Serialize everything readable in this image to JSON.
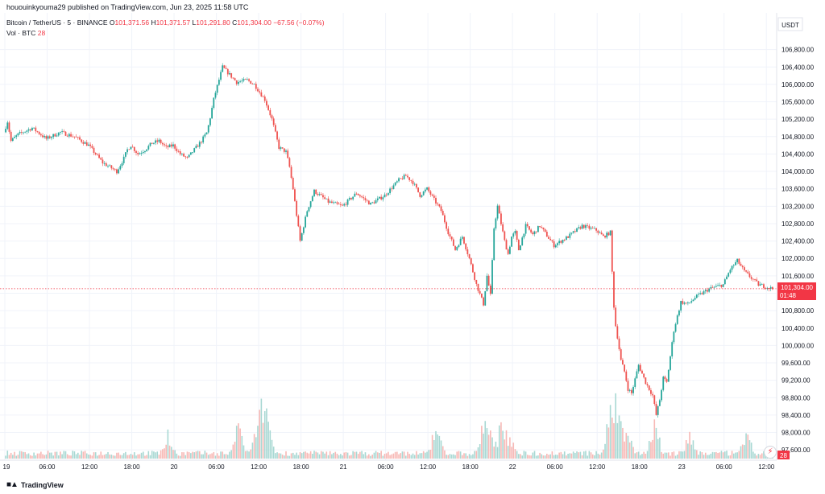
{
  "header": {
    "publish_line": "hououinkyouma29 published on TradingView.com, Jun 23, 2025 11:58 UTC"
  },
  "legend": {
    "symbol": "Bitcoin / TetherUS · 5 · BINANCE",
    "o_label": "O",
    "o_value": "101,371.56",
    "h_label": "H",
    "h_value": "101,371.57",
    "l_label": "L",
    "l_value": "101,291.80",
    "c_label": "C",
    "c_value": "101,304.00",
    "change": "−67.56 (−0.07%)",
    "vol_label": "Vol · BTC",
    "vol_value": "28"
  },
  "price_axis": {
    "currency": "USDT",
    "last_price": "101,304.00",
    "countdown": "01:48",
    "volume_badge": "28"
  },
  "footer": {
    "logo_text": "TradingView",
    "logo_icon": "tradingview-logo-icon"
  },
  "icons": {
    "flash": "lightning-icon"
  },
  "colors": {
    "up": "#26a69a",
    "down": "#ef5350",
    "vol_up": "#a8d8d3",
    "vol_down": "#f7b8b5",
    "grid": "#f0f3fa",
    "last_price_badge": "#f23645",
    "text": "#131722"
  },
  "chart_data": {
    "type": "candlestick",
    "symbol": "Bitcoin / TetherUS",
    "interval": "5",
    "exchange": "BINANCE",
    "ylim": [
      97400,
      107200
    ],
    "y_ticks": [
      97600,
      98000,
      98400,
      98800,
      99200,
      99600,
      100000,
      100400,
      100800,
      101200,
      101600,
      102000,
      102400,
      102800,
      103200,
      103600,
      104000,
      104400,
      104800,
      105200,
      105600,
      106000,
      106400,
      106800
    ],
    "y_tick_labels": [
      "97,600.00",
      "98,000.00",
      "98,400.00",
      "98,800.00",
      "99,200.00",
      "99,600.00",
      "100,000.00",
      "100,400.00",
      "100,800.00",
      "",
      "101,600.00",
      "102,000.00",
      "102,400.00",
      "102,800.00",
      "103,200.00",
      "103,600.00",
      "104,000.00",
      "104,400.00",
      "104,800.00",
      "105,200.00",
      "105,600.00",
      "106,000.00",
      "106,400.00",
      "106,800.00"
    ],
    "x_ticks": [
      0,
      6,
      12,
      18,
      24,
      30,
      36,
      42,
      48,
      54,
      60,
      66,
      72,
      78,
      84,
      90,
      96,
      102,
      108
    ],
    "x_tick_labels": [
      "19",
      "06:00",
      "12:00",
      "18:00",
      "20",
      "06:00",
      "12:00",
      "18:00",
      "21",
      "06:00",
      "12:00",
      "18:00",
      "22",
      "06:00",
      "12:00",
      "18:00",
      "23",
      "06:00",
      "12:00"
    ],
    "x_range_hours": [
      0,
      109
    ],
    "price_path_hours": [
      0,
      0.5,
      1,
      2,
      4,
      6,
      8,
      10,
      12,
      13,
      14,
      15,
      16,
      17,
      17.5,
      18,
      19,
      20,
      21,
      22,
      23,
      24,
      25,
      26,
      27,
      28,
      28.8,
      29.2,
      29.8,
      31,
      33,
      34.5,
      35.5,
      37,
      38,
      39,
      40,
      40.5,
      41,
      41.5,
      42,
      43,
      44,
      46,
      48,
      50,
      52,
      54,
      56,
      57,
      58,
      59,
      60,
      61,
      62,
      63,
      64,
      65,
      66,
      67,
      68,
      68.5,
      69,
      69.5,
      70,
      70.5,
      71,
      71.5,
      72,
      72.5,
      73,
      74,
      75,
      76,
      78,
      80,
      82,
      84,
      85,
      86,
      86.3,
      86.6,
      87,
      87.5,
      88,
      88.5,
      89,
      90,
      91,
      92,
      92.5,
      93,
      93.5,
      94,
      95,
      96,
      97,
      98,
      100,
      102,
      103,
      104,
      105,
      106,
      107,
      108,
      109
    ],
    "price_path": [
      104900,
      105150,
      104700,
      104850,
      105000,
      104750,
      104900,
      104800,
      104600,
      104400,
      104200,
      104100,
      104000,
      104300,
      104500,
      104600,
      104400,
      104500,
      104650,
      104700,
      104550,
      104600,
      104400,
      104300,
      104500,
      104700,
      104900,
      105200,
      105700,
      106400,
      106050,
      106100,
      106000,
      105650,
      105200,
      104550,
      104450,
      104100,
      103600,
      103000,
      102400,
      103100,
      103550,
      103300,
      103200,
      103500,
      103250,
      103450,
      103800,
      103900,
      103750,
      103450,
      103600,
      103350,
      103100,
      102600,
      102200,
      102500,
      102000,
      101400,
      100950,
      101600,
      101150,
      102700,
      103200,
      102800,
      102400,
      102100,
      102500,
      102600,
      102200,
      102750,
      102550,
      102750,
      102300,
      102500,
      102750,
      102650,
      102500,
      102600,
      101500,
      100600,
      100200,
      99650,
      99400,
      99000,
      98900,
      99550,
      99150,
      98850,
      98400,
      98750,
      99250,
      99150,
      100350,
      101000,
      100950,
      101100,
      101300,
      101400,
      101750,
      101950,
      101700,
      101550,
      101400,
      101350,
      101304
    ],
    "last_price": 101304.0,
    "open": 101371.56,
    "high": 101371.57,
    "low": 101291.8,
    "close": 101304.0,
    "change": -67.56,
    "change_pct": -0.07,
    "volume_spike_hours": [
      23,
      33,
      36,
      36.5,
      37,
      61,
      68,
      70.5,
      71.5,
      86,
      86.5,
      87,
      88,
      92,
      97,
      105
    ],
    "volume_spike_levels": [
      0.35,
      0.45,
      0.6,
      0.9,
      0.5,
      0.45,
      0.65,
      0.55,
      0.35,
      0.75,
      0.9,
      0.6,
      0.5,
      0.45,
      0.35,
      0.35
    ],
    "grid": true,
    "price_scale": "right"
  }
}
